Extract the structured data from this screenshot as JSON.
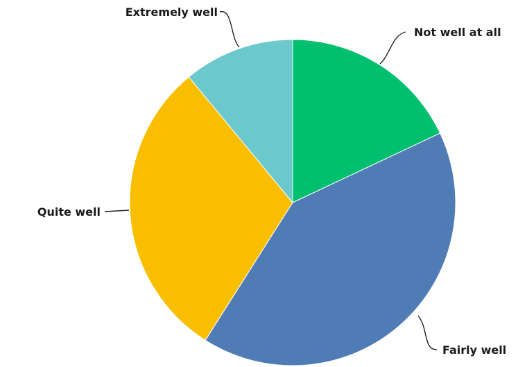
{
  "chart_data": {
    "type": "pie",
    "title": "",
    "unit": "%",
    "start_angle_deg": 0,
    "direction": "clockwise",
    "slices": [
      {
        "label": "Not well at all",
        "value": 18.0,
        "color": "#00BF6F"
      },
      {
        "label": "Fairly well",
        "value": 41.0,
        "color": "#507CB6"
      },
      {
        "label": "Quite well",
        "value": 30.0,
        "color": "#F9BE00"
      },
      {
        "label": "Extremely well",
        "value": 11.0,
        "color": "#6BC8CD"
      }
    ]
  }
}
